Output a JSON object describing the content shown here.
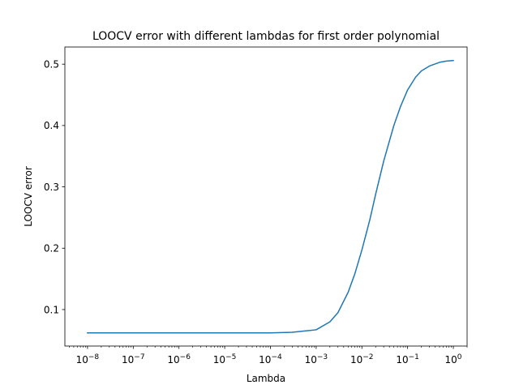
{
  "chart_data": {
    "type": "line",
    "title": "LOOCV error with different lambdas for first order polynomial",
    "xlabel": "Lambda",
    "ylabel": "LOOCV error",
    "x_scale": "log",
    "xlim": [
      3.2e-09,
      2.0
    ],
    "ylim": [
      0.0405,
      0.528
    ],
    "x_ticks": [
      {
        "value": 1e-08,
        "base": "10",
        "exp": "−8"
      },
      {
        "value": 1e-07,
        "base": "10",
        "exp": "−7"
      },
      {
        "value": 1e-06,
        "base": "10",
        "exp": "−6"
      },
      {
        "value": 1e-05,
        "base": "10",
        "exp": "−5"
      },
      {
        "value": 0.0001,
        "base": "10",
        "exp": "−4"
      },
      {
        "value": 0.001,
        "base": "10",
        "exp": "−3"
      },
      {
        "value": 0.01,
        "base": "10",
        "exp": "−2"
      },
      {
        "value": 0.1,
        "base": "10",
        "exp": "−1"
      },
      {
        "value": 1,
        "base": "10",
        "exp": "0"
      }
    ],
    "y_ticks": [
      {
        "value": 0.1,
        "label": "0.1"
      },
      {
        "value": 0.2,
        "label": "0.2"
      },
      {
        "value": 0.3,
        "label": "0.3"
      },
      {
        "value": 0.4,
        "label": "0.4"
      },
      {
        "value": 0.5,
        "label": "0.5"
      }
    ],
    "grid": false,
    "series": [
      {
        "color": "#1f77b4",
        "x": [
          1e-08,
          1e-07,
          1e-06,
          1e-05,
          0.0001,
          0.0003,
          0.001,
          0.002,
          0.003,
          0.005,
          0.007,
          0.01,
          0.015,
          0.02,
          0.03,
          0.05,
          0.07,
          0.1,
          0.15,
          0.2,
          0.3,
          0.5,
          0.7,
          1
        ],
        "y": [
          0.062,
          0.062,
          0.062,
          0.062,
          0.062,
          0.063,
          0.067,
          0.08,
          0.095,
          0.128,
          0.158,
          0.197,
          0.247,
          0.288,
          0.342,
          0.4,
          0.431,
          0.458,
          0.479,
          0.489,
          0.497,
          0.503,
          0.505,
          0.506
        ]
      }
    ]
  }
}
